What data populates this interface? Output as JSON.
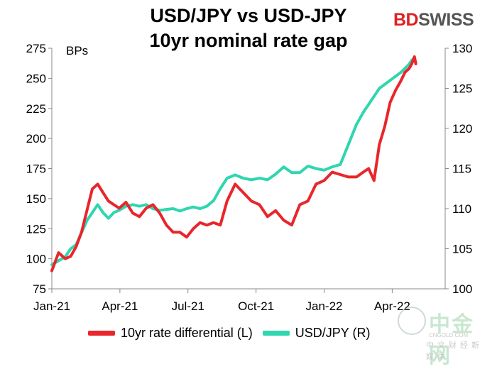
{
  "title_line1": "USD/JPY vs USD-JPY",
  "title_line2": "10yr nominal rate gap",
  "brand": {
    "part1": "BD",
    "part2": "SWISS"
  },
  "left_axis_unit": "BPs",
  "watermark": {
    "line1": "中金网",
    "line2": "CNGOLD.COM",
    "line3": "中文财经新媒体"
  },
  "colors": {
    "rate_diff": "#e8262b",
    "usdjpy": "#2fd6b0"
  },
  "chart_data": {
    "type": "line",
    "x_ticks": [
      "Jan-21",
      "Apr-21",
      "Jul-21",
      "Oct-21",
      "Jan-22",
      "Apr-22"
    ],
    "x_range": [
      0,
      552
    ],
    "y_left": {
      "ticks": [
        75,
        100,
        125,
        150,
        175,
        200,
        225,
        250,
        275
      ],
      "range": [
        75,
        275
      ]
    },
    "y_right": {
      "ticks": [
        100,
        105,
        110,
        115,
        120,
        125,
        130
      ],
      "range": [
        100,
        130
      ]
    },
    "series": [
      {
        "name": "10yr rate differential (L)",
        "axis": "left",
        "color": "#e8262b",
        "x": [
          0,
          10,
          20,
          28,
          36,
          44,
          52,
          60,
          68,
          76,
          84,
          92,
          100,
          110,
          120,
          130,
          140,
          150,
          160,
          170,
          180,
          190,
          200,
          210,
          220,
          230,
          240,
          250,
          260,
          272,
          284,
          296,
          308,
          320,
          332,
          344,
          356,
          368,
          380,
          392,
          404,
          416,
          428,
          440,
          452,
          462,
          470,
          478,
          486,
          494,
          502,
          510,
          518,
          524,
          530,
          534,
          538,
          540
        ],
        "y": [
          90,
          105,
          100,
          102,
          110,
          122,
          140,
          158,
          162,
          155,
          148,
          145,
          142,
          147,
          138,
          135,
          142,
          145,
          138,
          128,
          122,
          122,
          118,
          125,
          130,
          128,
          130,
          128,
          148,
          162,
          155,
          148,
          145,
          135,
          140,
          132,
          128,
          145,
          148,
          162,
          165,
          172,
          170,
          168,
          168,
          172,
          175,
          165,
          195,
          210,
          230,
          240,
          248,
          255,
          258,
          262,
          268,
          262
        ]
      },
      {
        "name": "USD/JPY (R)",
        "axis": "right",
        "color": "#2fd6b0",
        "x": [
          0,
          10,
          20,
          28,
          36,
          44,
          52,
          60,
          68,
          76,
          84,
          92,
          100,
          110,
          120,
          130,
          140,
          150,
          160,
          170,
          180,
          190,
          200,
          210,
          220,
          230,
          240,
          250,
          260,
          272,
          284,
          296,
          308,
          320,
          332,
          344,
          356,
          368,
          380,
          392,
          404,
          416,
          428,
          440,
          452,
          462,
          470,
          478,
          486,
          494,
          502,
          510,
          518,
          524,
          530,
          534,
          538,
          540
        ],
        "y": [
          103,
          103.5,
          104,
          105,
          105.5,
          107,
          108.5,
          109.5,
          110.5,
          109.5,
          108.8,
          109.5,
          109.8,
          110.3,
          110.5,
          110.3,
          110.5,
          110,
          109.8,
          109.9,
          110,
          109.7,
          110,
          110.2,
          110,
          110.3,
          111,
          112.5,
          113.8,
          114.2,
          113.8,
          113.6,
          113.8,
          113.6,
          114.3,
          115.2,
          114.5,
          114.5,
          115.3,
          115,
          114.8,
          115.2,
          115.5,
          118,
          120.5,
          122,
          123,
          124,
          125,
          125.5,
          126,
          126.5,
          127,
          127.5,
          128,
          128.5,
          128.8,
          128.2
        ]
      }
    ]
  }
}
